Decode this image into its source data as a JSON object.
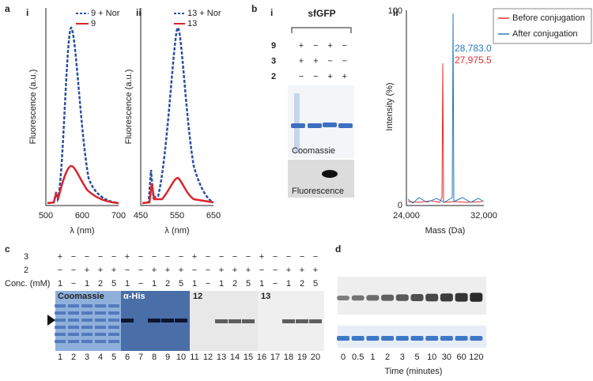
{
  "panel_a": {
    "label": "a",
    "i": {
      "label": "i",
      "legend": [
        "9 + Nor",
        "9"
      ],
      "ylabel": "Fluorescence (a.u.)",
      "xlabel": "λ (nm)",
      "xticks": [
        "500",
        "600",
        "700"
      ]
    },
    "ii": {
      "label": "ii",
      "legend": [
        "13 + Nor",
        "13"
      ],
      "ylabel": "Fluorescence (a.u.)",
      "xlabel": "λ (nm)",
      "xticks": [
        "450",
        "550",
        "650"
      ]
    }
  },
  "panel_b": {
    "label": "b",
    "i": {
      "label": "i",
      "title": "sfGFP",
      "rows": [
        {
          "label": "9",
          "signs": [
            "+",
            "−",
            "+",
            "−"
          ]
        },
        {
          "label": "3",
          "signs": [
            "+",
            "+",
            "−",
            "−"
          ]
        },
        {
          "label": "2",
          "signs": [
            "−",
            "−",
            "+",
            "+"
          ]
        }
      ],
      "coomassie": "Coomassie",
      "fluorescence": "Fluorescence"
    },
    "ii": {
      "label": "ii",
      "legend": [
        "Before conjugation",
        "After conjugation"
      ],
      "peaks": [
        "28,783.0",
        "27,975.5"
      ],
      "ylabel": "Intensity (%)",
      "xlabel": "Mass (Da)",
      "xticks": [
        "24,000",
        "32,000"
      ],
      "yticks": [
        "0",
        "100"
      ]
    }
  },
  "panel_c": {
    "label": "c",
    "rows": [
      {
        "label": "3",
        "signs": [
          "+",
          "−",
          "−",
          "−",
          "−",
          "+",
          "−",
          "−",
          "−",
          "−",
          "+",
          "−",
          "−",
          "−",
          "−",
          "+",
          "−",
          "−",
          "−",
          "−"
        ]
      },
      {
        "label": "2",
        "signs": [
          "−",
          "−",
          "+",
          "+",
          "+",
          "−",
          "−",
          "+",
          "+",
          "+",
          "−",
          "−",
          "+",
          "+",
          "+",
          "−",
          "−",
          "+",
          "+",
          "+"
        ]
      },
      {
        "label": "Conc. (mM)",
        "signs": [
          "1",
          "−",
          "1",
          "2",
          "5",
          "1",
          "−",
          "1",
          "2",
          "5",
          "1",
          "−",
          "1",
          "2",
          "5",
          "1",
          "−",
          "1",
          "2",
          "5"
        ]
      }
    ],
    "gel_labels": [
      "Coomassie",
      "α-His",
      "12",
      "13"
    ],
    "lanes": [
      "1",
      "2",
      "3",
      "4",
      "5",
      "6",
      "7",
      "8",
      "9",
      "10",
      "11",
      "12",
      "13",
      "14",
      "15",
      "16",
      "17",
      "18",
      "19",
      "20"
    ]
  },
  "panel_d": {
    "label": "d",
    "lanes": [
      "0",
      "0.5",
      "1",
      "2",
      "3",
      "5",
      "10",
      "30",
      "60",
      "120"
    ],
    "xlabel": "Time (minutes)"
  }
}
